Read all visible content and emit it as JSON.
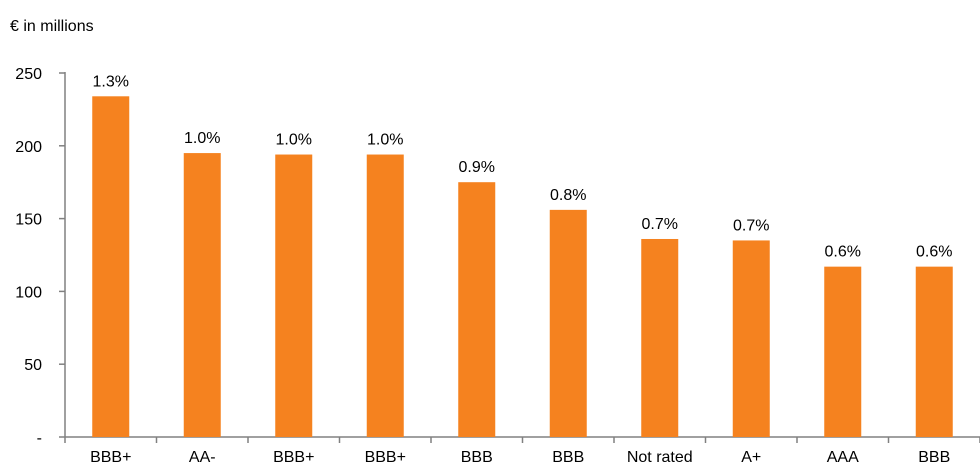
{
  "chart_data": {
    "type": "bar",
    "unit_label": "€ in millions",
    "categories": [
      "BBB+",
      "AA-",
      "BBB+",
      "BBB+",
      "BBB",
      "BBB",
      "Not rated",
      "A+",
      "AAA",
      "BBB"
    ],
    "values": [
      234,
      195,
      194,
      194,
      175,
      156,
      136,
      135,
      117,
      117
    ],
    "data_labels": [
      "1.3%",
      "1.0%",
      "1.0%",
      "1.0%",
      "0.9%",
      "0.8%",
      "0.7%",
      "0.7%",
      "0.6%",
      "0.6%"
    ],
    "yticks": [
      0,
      50,
      100,
      150,
      200,
      250
    ],
    "ytick_labels": [
      "-",
      "50",
      "100",
      "150",
      "200",
      "250"
    ],
    "ylim": [
      0,
      250
    ],
    "grid": false,
    "legend": "none",
    "bar_color": "#F5821F",
    "axis_color": "#808080"
  }
}
